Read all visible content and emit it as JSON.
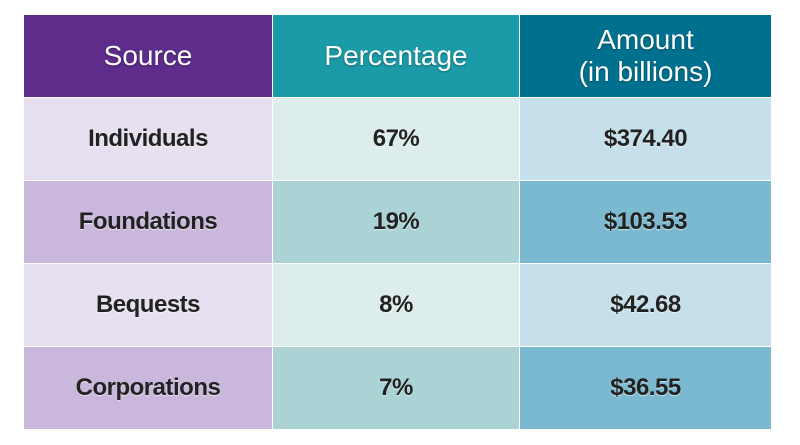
{
  "table": {
    "header": [
      "Source",
      "Percentage",
      "Amount\n(in billions)"
    ],
    "rows": [
      [
        "Individuals",
        "67%",
        "$374.40"
      ],
      [
        "Foundations",
        "19%",
        "$103.53"
      ],
      [
        "Bequests",
        "8%",
        "$42.68"
      ],
      [
        "Corporations",
        "7%",
        "$36.55"
      ]
    ]
  }
}
